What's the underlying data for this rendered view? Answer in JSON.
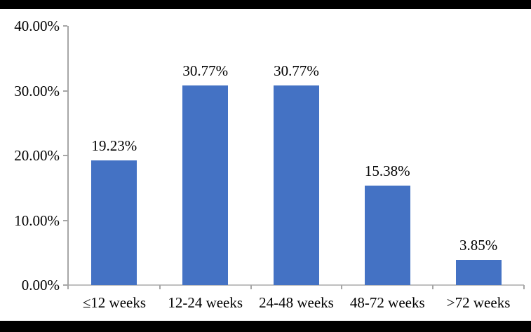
{
  "chart_data": {
    "type": "bar",
    "categories": [
      "≤12 weeks",
      "12-24 weeks",
      "24-48 weeks",
      "48-72 weeks",
      ">72 weeks"
    ],
    "values": [
      19.23,
      30.77,
      30.77,
      15.38,
      3.85
    ],
    "data_labels": [
      "19.23%",
      "30.77%",
      "30.77%",
      "15.38%",
      "3.85%"
    ],
    "y_ticks": [
      "0.00%",
      "10.00%",
      "20.00%",
      "30.00%",
      "40.00%"
    ],
    "ylim": [
      0,
      40
    ],
    "xlabel": "",
    "ylabel": "",
    "grid": false,
    "legend": "none",
    "bar_color": "#4472C4"
  },
  "colors": {
    "bar": "#4472C4",
    "y_axis": "#a6a6a6",
    "x_axis": "#bfbfbf",
    "tick": "#a6a6a6",
    "text": "#000000",
    "letterbox": "#000000",
    "background": "#ffffff"
  }
}
